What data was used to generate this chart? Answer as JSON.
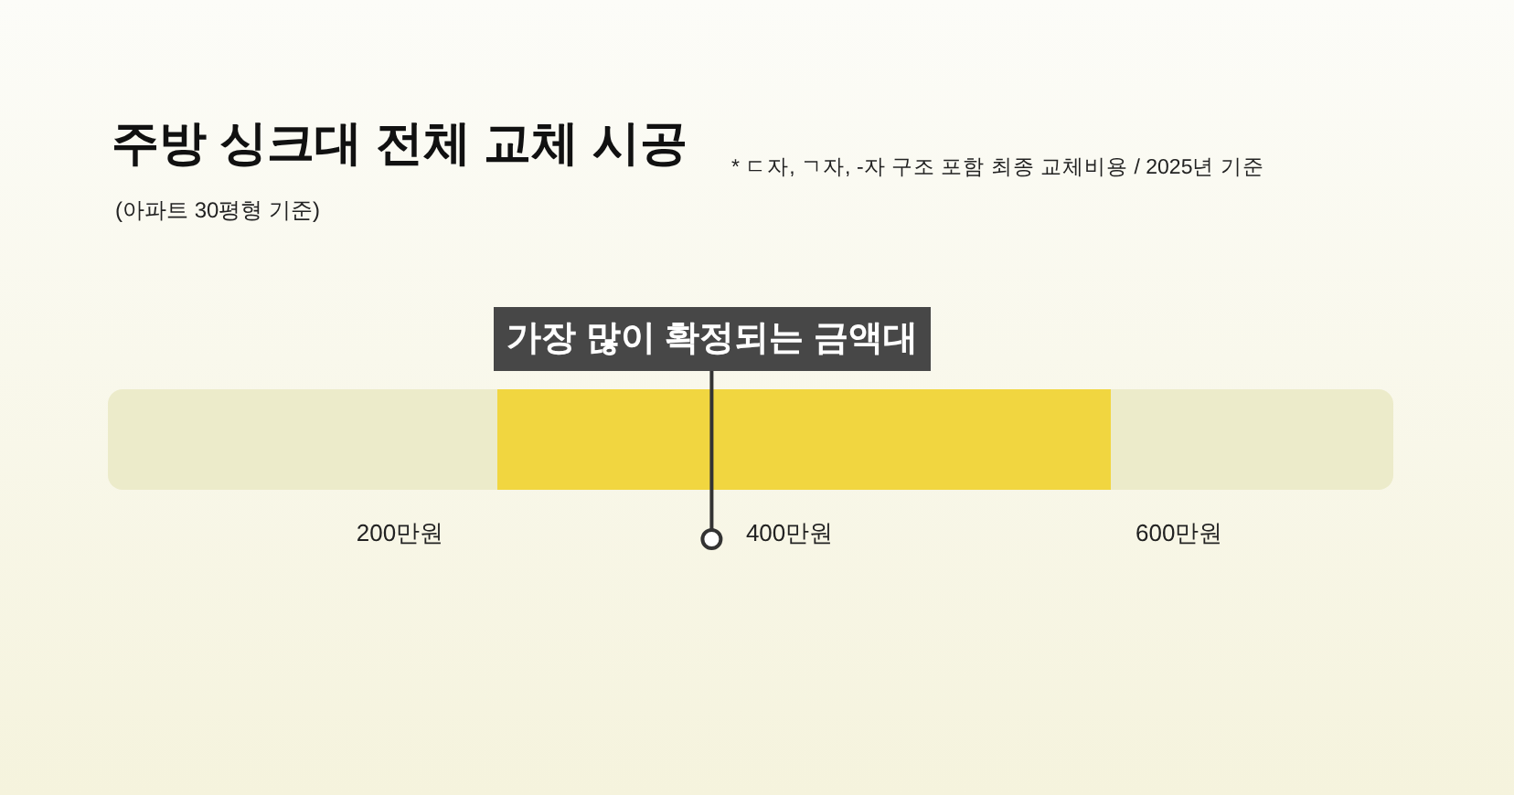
{
  "chart_data": {
    "type": "bar",
    "orientation": "horizontal",
    "title": "주방 싱크대 전체 교체 시공",
    "subtitle": "(아파트 30평형 기준)",
    "categories": [
      null
    ],
    "base": [
      250
    ],
    "values": [
      315
    ],
    "color": "#f1d640",
    "xlim": [
      50,
      710
    ],
    "xticks": [
      {
        "value": 200,
        "label": "200만원"
      },
      {
        "value": 400,
        "label": "400만원"
      },
      {
        "value": 600,
        "label": "600만원"
      }
    ],
    "ref_lines": [
      {
        "axis": "x",
        "value": 360,
        "label": "가장 많이 확정되는 금액대"
      }
    ],
    "annotations": [
      "* ㄷ자, ㄱ자, -자 구조 포함 최종 교체비용 / 2025년 기준"
    ],
    "grid": false,
    "tick_labels": "x"
  }
}
